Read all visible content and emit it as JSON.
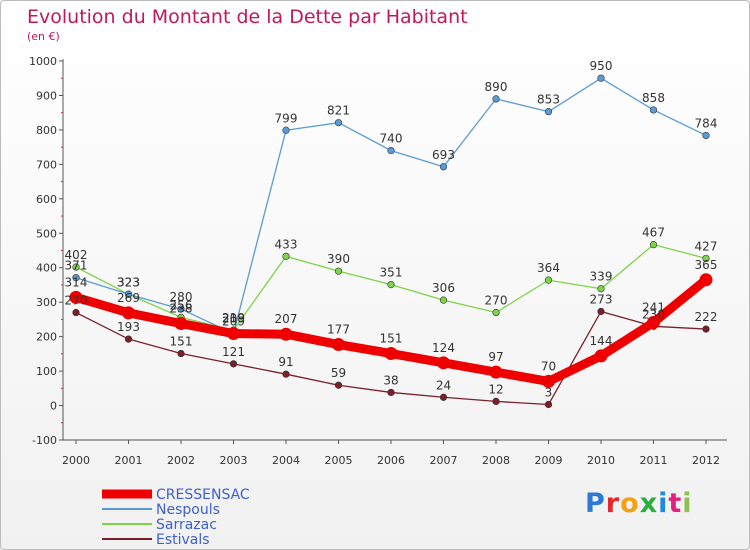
{
  "title": "Evolution du Montant de la Dette par Habitant",
  "subtitle": "(en €)",
  "logo": {
    "text": "Proxiti",
    "letter_colors": [
      "#2b7bd6",
      "#e6262b",
      "#f2a115",
      "#2cae3a",
      "#1e88e5",
      "#e0217e",
      "#8bc34a"
    ]
  },
  "chart_data": {
    "type": "line",
    "title": "Evolution du Montant de la Dette par Habitant",
    "subtitle": "(en €)",
    "x": [
      "2000",
      "2001",
      "2002",
      "2003",
      "2004",
      "2005",
      "2006",
      "2007",
      "2008",
      "2009",
      "2010",
      "2011",
      "2012"
    ],
    "ylim": [
      -100,
      1000
    ],
    "yticks": [
      "1000",
      "900",
      "800",
      "700",
      "600",
      "500",
      "400",
      "300",
      "200",
      "100",
      "0",
      "-100"
    ],
    "grid": false,
    "legend_position": "bottom-left",
    "series": [
      {
        "name": "CRESSENSAC",
        "color": "#ee0000",
        "values": [
          314,
          269,
          238,
          209,
          207,
          177,
          151,
          124,
          97,
          70,
          144,
          241,
          365
        ]
      },
      {
        "name": "Nespouls",
        "color": "#5b9bd5",
        "values": [
          371,
          323,
          280,
          209,
          799,
          821,
          740,
          693,
          890,
          853,
          950,
          858,
          784
        ]
      },
      {
        "name": "Sarrazac",
        "color": "#7ed348",
        "values": [
          402,
          323,
          256,
          219,
          433,
          390,
          351,
          306,
          270,
          364,
          339,
          467,
          427
        ]
      },
      {
        "name": "Estivals",
        "color": "#7b1f2a",
        "values": [
          270,
          193,
          151,
          121,
          91,
          59,
          38,
          24,
          12,
          3,
          273,
          230,
          222
        ]
      }
    ]
  }
}
